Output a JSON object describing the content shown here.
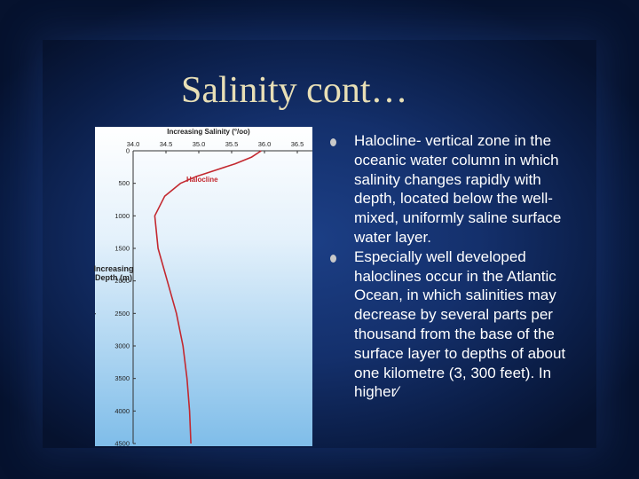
{
  "title": "Salinity cont…",
  "bullets": [
    "Halocline- vertical zone in the oceanic water column in which salinity changes rapidly with depth, located below the well-mixed, uniformly saline surface water layer.",
    "Especially well developed haloclines occur in the Atlantic Ocean, in which salinities may decrease by several parts per thousand from the base of the surface layer to depths of about one kilometre (3, 300 feet). In higher⁄"
  ],
  "chart_data": {
    "type": "line",
    "title": "Increasing Salinity (°/oo)",
    "y_label": "Increasing Depth (m)",
    "annotation": "Halocline",
    "color": "#c3282f",
    "x": [
      35.95,
      35.8,
      35.55,
      35.25,
      34.95,
      34.72,
      34.48,
      34.33,
      34.38,
      34.52,
      34.66,
      34.76,
      34.82,
      34.86,
      34.88
    ],
    "y": [
      0,
      100,
      200,
      300,
      400,
      500,
      700,
      1000,
      1500,
      2000,
      2500,
      3000,
      3500,
      4000,
      4500
    ],
    "xlim": [
      34.0,
      36.5
    ],
    "ylim": [
      0,
      4500
    ],
    "xticks": [
      {
        "value": 34,
        "label": "34.0"
      },
      34.5,
      {
        "value": 35,
        "label": "35.0"
      },
      35.5,
      {
        "value": 36,
        "label": "36.0"
      },
      36.5
    ],
    "yticks": [
      0,
      500,
      1000,
      1500,
      2000,
      2500,
      3000,
      3500,
      4000,
      4500
    ]
  }
}
